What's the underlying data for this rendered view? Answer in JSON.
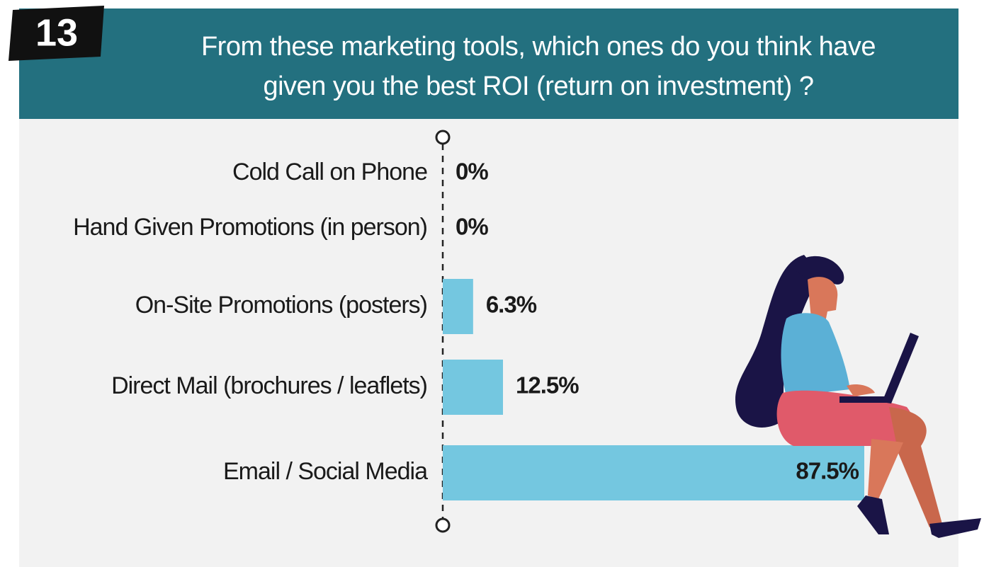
{
  "chart_data": {
    "type": "bar",
    "badge": "13",
    "title": "From these marketing tools, which ones do you think have given you the best ROI (return on investment) ?",
    "categories": [
      "Cold Call on Phone",
      "Hand Given Promotions (in person)",
      "On-Site Promotions (posters)",
      "Direct Mail (brochures / leaflets)",
      "Email / Social Media"
    ],
    "values": [
      0,
      0,
      6.3,
      12.5,
      87.5
    ],
    "value_labels": [
      "0%",
      "0%",
      "6.3%",
      "12.5%",
      "87.5%"
    ],
    "color": "#74c7e0"
  }
}
